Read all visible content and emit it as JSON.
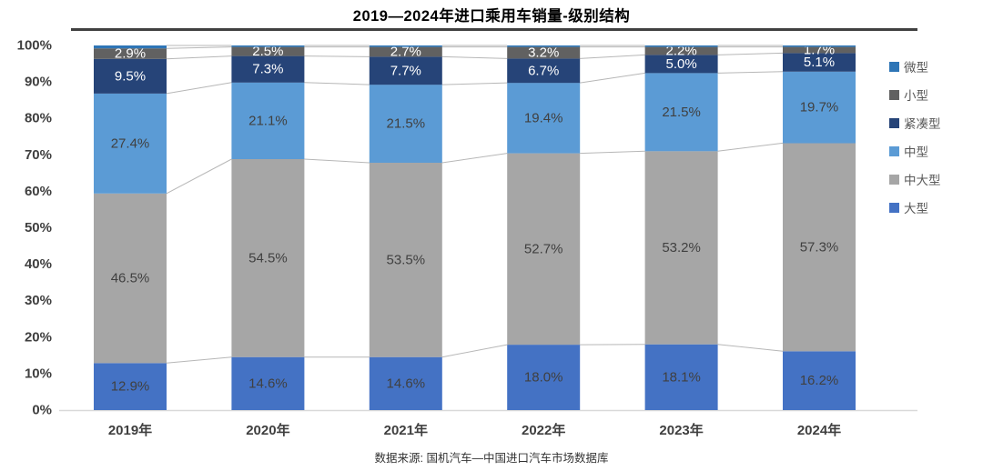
{
  "title": "2019—2024年进口乘用车销量-级别结构",
  "source_note": "数据来源: 国机汽车—中国进口汽车市场数据库",
  "accent_colors": {
    "title_rule": "#404040",
    "connector_line": "#b7b7b7",
    "axis_line": "#d9d9d9",
    "tick_text": "#3f3f3f"
  },
  "chart_data": {
    "type": "bar",
    "stacked": true,
    "percent_axis": true,
    "title": "2019—2024年进口乘用车销量-级别结构",
    "categories": [
      "2019年",
      "2020年",
      "2021年",
      "2022年",
      "2023年",
      "2024年"
    ],
    "series": [
      {
        "name": "大型",
        "color": "#4472C4",
        "label_color": "#404040",
        "show_labels": true,
        "values": [
          12.9,
          14.6,
          14.6,
          18.0,
          18.1,
          16.2
        ]
      },
      {
        "name": "中大型",
        "color": "#A6A6A6",
        "label_color": "#404040",
        "show_labels": true,
        "values": [
          46.5,
          54.5,
          53.5,
          52.7,
          53.2,
          57.3
        ]
      },
      {
        "name": "中型",
        "color": "#5B9BD5",
        "label_color": "#404040",
        "show_labels": true,
        "values": [
          27.4,
          21.1,
          21.5,
          19.4,
          21.5,
          19.7
        ]
      },
      {
        "name": "紧凑型",
        "color": "#264478",
        "label_color": "#FFFFFF",
        "show_labels": true,
        "values": [
          9.5,
          7.3,
          7.7,
          6.7,
          5.0,
          5.1
        ]
      },
      {
        "name": "小型",
        "color": "#616161",
        "label_color": "#FFFFFF",
        "show_labels": true,
        "values": [
          2.9,
          2.5,
          2.7,
          3.2,
          2.2,
          1.7
        ]
      },
      {
        "name": "微型",
        "color": "#2E75B6",
        "label_color": "#FFFFFF",
        "show_labels": false,
        "values": [
          0.8,
          0.4,
          0.4,
          0.4,
          0.4,
          0.4
        ]
      }
    ],
    "legend": {
      "position": "right",
      "items": [
        "微型",
        "小型",
        "紧凑型",
        "中型",
        "中大型",
        "大型"
      ]
    },
    "y_ticks": [
      "0%",
      "10%",
      "20%",
      "30%",
      "40%",
      "50%",
      "60%",
      "70%",
      "80%",
      "90%",
      "100%"
    ],
    "ylim": [
      0,
      100
    ],
    "grid": false,
    "label_suffix": "%"
  }
}
